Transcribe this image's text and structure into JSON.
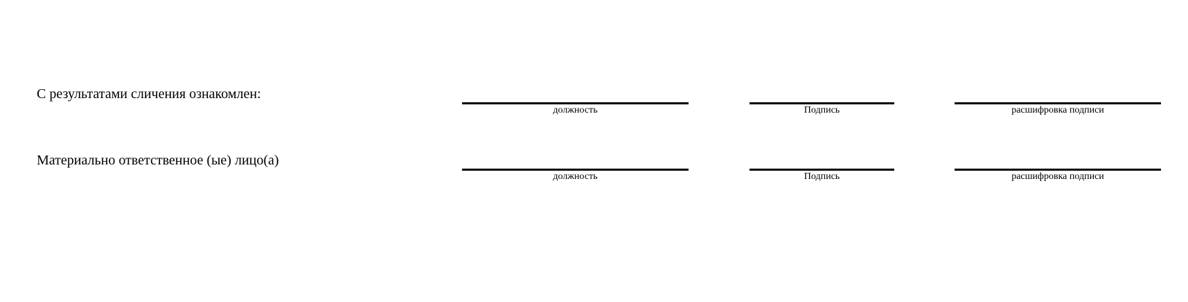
{
  "rows": [
    {
      "label": "С результатами сличения ознакомлен:",
      "captions": {
        "position": "должность",
        "signature": "Подпись",
        "decode": "расшифровка подписи"
      }
    },
    {
      "label": "Материально ответственное (ые) лицо(а)",
      "captions": {
        "position": "должность",
        "signature": "Подпись",
        "decode": "расшифровка подписи"
      }
    }
  ]
}
